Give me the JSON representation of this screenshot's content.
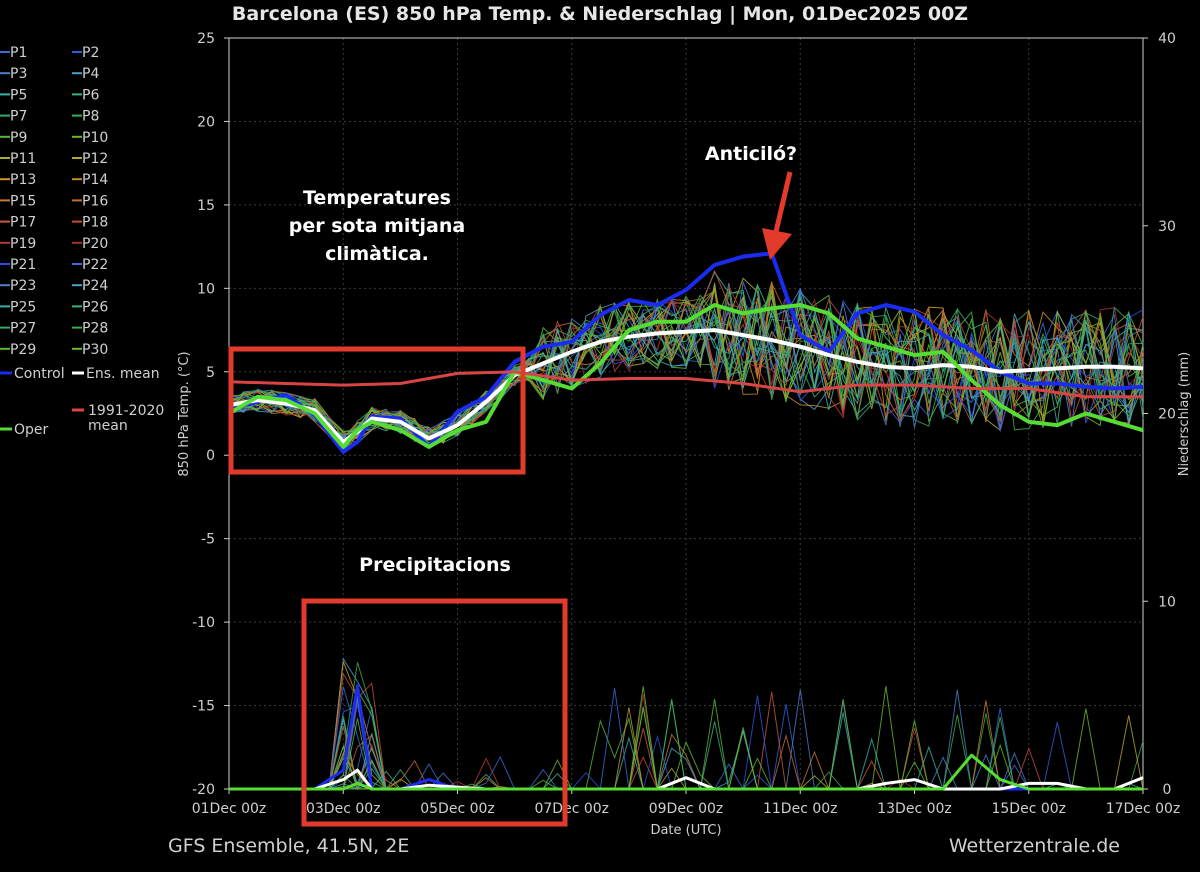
{
  "chart_data": {
    "type": "line",
    "title": "Barcelona  (ES)  850 hPa Temp. & Niederschlag | Mon, 01Dec2025 00Z",
    "xlabel": "Date (UTC)",
    "ylabel_left": "850 hPa Temp. (°C)",
    "ylabel_right": "Niederschlag (mm)",
    "ylim_left": [
      -20,
      25
    ],
    "ylim_right": [
      0,
      40
    ],
    "yticks_left": [
      25,
      20,
      15,
      10,
      5,
      0,
      -5,
      -10,
      -15,
      -20
    ],
    "yticks_right": [
      40,
      30,
      20,
      10,
      0
    ],
    "x_range_hours": [
      0,
      384
    ],
    "x_ticks": [
      {
        "label": "01Dec 00z",
        "hour": 0
      },
      {
        "label": "03Dec 00z",
        "hour": 48
      },
      {
        "label": "05Dec 00z",
        "hour": 96
      },
      {
        "label": "07Dec 00z",
        "hour": 144
      },
      {
        "label": "09Dec 00z",
        "hour": 192
      },
      {
        "label": "11Dec 00z",
        "hour": 240
      },
      {
        "label": "13Dec 00z",
        "hour": 288
      },
      {
        "label": "15Dec 00z",
        "hour": 336
      },
      {
        "label": "17Dec 00z",
        "hour": 384
      }
    ],
    "series": [
      {
        "name": "Control",
        "color": "#1a2cf0",
        "x": [
          0,
          12,
          24,
          36,
          48,
          54,
          60,
          72,
          84,
          96,
          108,
          120,
          132,
          144,
          156,
          168,
          180,
          192,
          204,
          216,
          228,
          240,
          252,
          264,
          276,
          288,
          300,
          312,
          324,
          336,
          348,
          360,
          372,
          384
        ],
        "temp": [
          2.8,
          3.2,
          3.6,
          2.4,
          0.2,
          0.8,
          2.3,
          2.2,
          0.5,
          2.6,
          3.5,
          5.6,
          6.5,
          6.8,
          8.4,
          9.3,
          9.0,
          9.9,
          11.4,
          11.9,
          12.1,
          7.2,
          6.2,
          8.5,
          9.0,
          8.6,
          7.2,
          6.3,
          5.0,
          4.3,
          4.3,
          4.1,
          4.0,
          4.1
        ],
        "precip": [
          0,
          0,
          0,
          0,
          1,
          5.5,
          0,
          0,
          0.5,
          0,
          0,
          0,
          0,
          0,
          0,
          0,
          0,
          0,
          0,
          0,
          0,
          0,
          0,
          0,
          0,
          0,
          0,
          0,
          0,
          0,
          0,
          0,
          0,
          0
        ]
      },
      {
        "name": "Ens. mean",
        "color": "#ffffff",
        "x": [
          0,
          12,
          24,
          36,
          48,
          54,
          60,
          72,
          84,
          96,
          108,
          120,
          132,
          144,
          156,
          168,
          180,
          192,
          204,
          216,
          228,
          240,
          252,
          264,
          276,
          288,
          300,
          312,
          324,
          336,
          348,
          360,
          372,
          384
        ],
        "temp": [
          3.0,
          3.3,
          3.1,
          2.7,
          0.8,
          1.4,
          2.2,
          2.0,
          1.0,
          1.8,
          3.2,
          4.8,
          5.5,
          6.2,
          6.8,
          7.1,
          7.3,
          7.4,
          7.5,
          7.2,
          6.9,
          6.5,
          6.0,
          5.6,
          5.3,
          5.2,
          5.4,
          5.3,
          5.0,
          5.1,
          5.2,
          5.3,
          5.3,
          5.2
        ],
        "precip": [
          0,
          0,
          0,
          0,
          0.5,
          1,
          0,
          0,
          0.2,
          0.1,
          0,
          0,
          0,
          0,
          0,
          0,
          0,
          0.6,
          0,
          0,
          0,
          0,
          0,
          0,
          0.3,
          0.5,
          0,
          0,
          0,
          0.3,
          0.3,
          0,
          0,
          0.6
        ]
      },
      {
        "name": "Oper",
        "color": "#55dd33",
        "x": [
          0,
          12,
          24,
          36,
          48,
          54,
          60,
          72,
          84,
          96,
          108,
          120,
          132,
          144,
          156,
          168,
          180,
          192,
          204,
          216,
          228,
          240,
          252,
          264,
          276,
          288,
          300,
          312,
          324,
          336,
          348,
          360,
          372,
          384
        ],
        "temp": [
          2.5,
          3.5,
          3.3,
          2.5,
          0.5,
          1.5,
          2.0,
          1.5,
          0.5,
          1.5,
          2.0,
          5.0,
          4.5,
          4.0,
          5.5,
          7.5,
          8.0,
          8.0,
          9.0,
          8.5,
          8.8,
          9.0,
          8.5,
          7.0,
          6.5,
          6.0,
          6.2,
          4.5,
          3.0,
          2.0,
          1.8,
          2.5,
          2.0,
          1.5
        ],
        "precip": [
          0,
          0,
          0,
          0,
          0,
          0.3,
          0,
          0,
          0,
          0,
          0,
          0,
          0,
          0,
          0,
          0,
          0,
          0,
          0,
          0,
          0,
          0,
          0,
          0,
          0,
          0,
          0,
          1.8,
          0.5,
          0,
          0,
          0,
          0,
          0
        ]
      },
      {
        "name": "1991-2020 mean",
        "color": "#d94545",
        "x": [
          0,
          24,
          48,
          72,
          96,
          120,
          144,
          168,
          192,
          216,
          240,
          264,
          288,
          312,
          336,
          360,
          384
        ],
        "temp": [
          4.4,
          4.3,
          4.2,
          4.3,
          4.9,
          5.0,
          4.5,
          4.6,
          4.6,
          4.3,
          3.8,
          4.2,
          4.2,
          4.0,
          4.0,
          3.5,
          3.5
        ],
        "precip": []
      }
    ],
    "legend": [
      {
        "label": "P1",
        "color": "#3a6bd6"
      },
      {
        "label": "P2",
        "color": "#2f5fe0"
      },
      {
        "label": "P3",
        "color": "#4a80c8"
      },
      {
        "label": "P4",
        "color": "#4aa0c8"
      },
      {
        "label": "P5",
        "color": "#3ab0a8"
      },
      {
        "label": "P6",
        "color": "#3ab088"
      },
      {
        "label": "P7",
        "color": "#3aa868"
      },
      {
        "label": "P8",
        "color": "#3ab048"
      },
      {
        "label": "P9",
        "color": "#5ab838"
      },
      {
        "label": "P10",
        "color": "#6ab830"
      },
      {
        "label": "P11",
        "color": "#a8b030"
      },
      {
        "label": "P12",
        "color": "#b8a828"
      },
      {
        "label": "P13",
        "color": "#c89a28"
      },
      {
        "label": "P14",
        "color": "#c88a28"
      },
      {
        "label": "P15",
        "color": "#c87a30"
      },
      {
        "label": "P16",
        "color": "#c86a30"
      },
      {
        "label": "P17",
        "color": "#c85a38"
      },
      {
        "label": "P18",
        "color": "#c84a38"
      },
      {
        "label": "P19",
        "color": "#b83838"
      },
      {
        "label": "P20",
        "color": "#a83030"
      },
      {
        "label": "P21",
        "color": "#2f4fe0"
      },
      {
        "label": "P22",
        "color": "#3a6bd6"
      },
      {
        "label": "P23",
        "color": "#4a80c8"
      },
      {
        "label": "P24",
        "color": "#4aa0c8"
      },
      {
        "label": "P25",
        "color": "#3ab0a8"
      },
      {
        "label": "P26",
        "color": "#3ab088"
      },
      {
        "label": "P27",
        "color": "#3aa868"
      },
      {
        "label": "P28",
        "color": "#3ab048"
      },
      {
        "label": "P29",
        "color": "#5ab838"
      },
      {
        "label": "P30",
        "color": "#6ab830"
      },
      {
        "label": "Control",
        "color": "#1a2cf0"
      },
      {
        "label": "Ens. mean",
        "color": "#ffffff"
      },
      {
        "label": "1991-2020 mean",
        "color": "#d94545"
      },
      {
        "label": "Oper",
        "color": "#55dd33"
      }
    ],
    "annotations": {
      "temp_note": [
        "Temperatures",
        "per sota mitjana",
        "climàtica."
      ],
      "precip_note": "Precipitacions",
      "anticyclone_note": "Anticiló?"
    },
    "footer_left": "GFS Ensemble, 41.5N, 2E",
    "footer_right": "Wetterzentrale.de",
    "highlight_color": "#e23b2b"
  }
}
